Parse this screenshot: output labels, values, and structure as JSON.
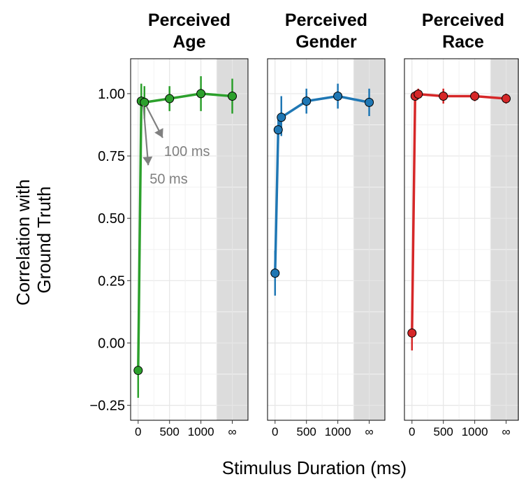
{
  "chart_data": {
    "type": "line",
    "x_label": "Stimulus Duration (ms)",
    "y_label_lines": [
      "Correlation with",
      "Ground Truth"
    ],
    "y_ticks": [
      -0.25,
      0.0,
      0.25,
      0.5,
      0.75,
      1.0
    ],
    "y_tick_labels": [
      "−0.25",
      "0.00",
      "0.25",
      "0.50",
      "0.75",
      "1.00"
    ],
    "ylim": [
      -0.31,
      1.14
    ],
    "x_ticks": [
      0,
      500,
      1000,
      "∞"
    ],
    "x_tick_labels": [
      "0",
      "500",
      "1000",
      "∞"
    ],
    "x_positions": {
      "infinity_plotted_at": 1500
    },
    "xlim": [
      -120,
      1750
    ],
    "shaded_region": {
      "x_from": 1250,
      "x_to": 1750,
      "color": "#dcdcdc"
    },
    "grid": true,
    "panels": [
      {
        "title_lines": [
          "Perceived",
          "Age"
        ],
        "color": "#2ca02c",
        "points": [
          {
            "x": 0,
            "y": -0.11,
            "lo": -0.22,
            "hi": 0.0
          },
          {
            "x": 50,
            "y": 0.97,
            "lo": 0.91,
            "hi": 1.04
          },
          {
            "x": 100,
            "y": 0.965,
            "lo": 0.9,
            "hi": 1.03
          },
          {
            "x": 500,
            "y": 0.98,
            "lo": 0.93,
            "hi": 1.03
          },
          {
            "x": 1000,
            "y": 1.0,
            "lo": 0.93,
            "hi": 1.07
          },
          {
            "x": 1500,
            "y": 0.99,
            "lo": 0.92,
            "hi": 1.06
          }
        ],
        "annotations": [
          {
            "text": "100 ms",
            "point_x": 100,
            "point_y": 0.965,
            "label_x": 480,
            "label_y": 0.75
          },
          {
            "text": "50 ms",
            "point_x": 50,
            "point_y": 0.97,
            "label_x": 250,
            "label_y": 0.64
          }
        ]
      },
      {
        "title_lines": [
          "Perceived",
          "Gender"
        ],
        "color": "#1f77b4",
        "points": [
          {
            "x": 0,
            "y": 0.28,
            "lo": 0.19,
            "hi": 0.37
          },
          {
            "x": 50,
            "y": 0.855,
            "lo": 0.8,
            "hi": 0.91
          },
          {
            "x": 100,
            "y": 0.905,
            "lo": 0.83,
            "hi": 0.99
          },
          {
            "x": 500,
            "y": 0.97,
            "lo": 0.92,
            "hi": 1.02
          },
          {
            "x": 1000,
            "y": 0.99,
            "lo": 0.94,
            "hi": 1.04
          },
          {
            "x": 1500,
            "y": 0.965,
            "lo": 0.91,
            "hi": 1.02
          }
        ]
      },
      {
        "title_lines": [
          "Perceived",
          "Race"
        ],
        "color": "#d62728",
        "points": [
          {
            "x": 0,
            "y": 0.04,
            "lo": -0.03,
            "hi": 0.11
          },
          {
            "x": 50,
            "y": 0.99,
            "lo": 0.97,
            "hi": 1.01
          },
          {
            "x": 100,
            "y": 0.998,
            "lo": 0.98,
            "hi": 1.02
          },
          {
            "x": 500,
            "y": 0.99,
            "lo": 0.96,
            "hi": 1.02
          },
          {
            "x": 1000,
            "y": 0.99,
            "lo": 0.97,
            "hi": 1.01
          },
          {
            "x": 1500,
            "y": 0.98,
            "lo": 0.96,
            "hi": 1.0
          }
        ]
      }
    ]
  }
}
